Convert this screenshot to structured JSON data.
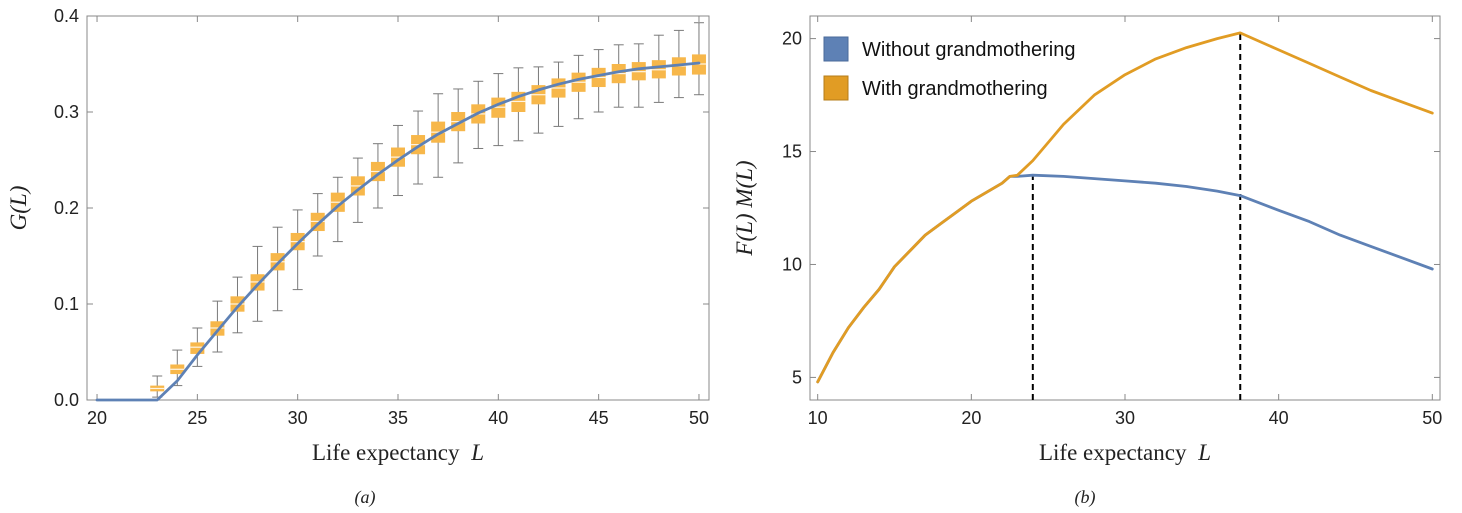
{
  "colors": {
    "blue": "#5e81b5",
    "orange": "#e19c24",
    "orange_light": "#f7b74a",
    "errorbar": "#7a7a7a",
    "vline": "#000000"
  },
  "panel_a": {
    "caption": "(a)",
    "ylabel": "G(L)",
    "xlabel_text": "Life expectancy",
    "xlabel_var": "L"
  },
  "panel_b": {
    "caption": "(b)",
    "ylabel": "F(L) M(L)",
    "xlabel_text": "Life expectancy",
    "xlabel_var": "L",
    "legend": [
      "Without grandmothering",
      "With grandmothering"
    ]
  },
  "chart_data": [
    {
      "type": "line",
      "panel": "a",
      "xlim": [
        19.5,
        50.5
      ],
      "ylim": [
        0,
        0.4
      ],
      "x_ticks": [
        20,
        25,
        30,
        35,
        40,
        45,
        50
      ],
      "y_ticks": [
        0.0,
        0.1,
        0.2,
        0.3,
        0.4
      ],
      "y_tick_labels": [
        "0.0",
        "0.1",
        "0.2",
        "0.3",
        "0.4"
      ],
      "grid": false,
      "series": [
        {
          "style": "line",
          "color": "blue",
          "x": [
            20,
            22,
            23,
            24,
            25,
            26,
            27,
            28,
            29,
            30,
            31,
            32,
            33,
            34,
            35,
            36,
            37,
            38,
            39,
            40,
            41,
            42,
            43,
            44,
            45,
            46,
            47,
            48,
            49,
            50
          ],
          "y": [
            0.0,
            0.0,
            0.0,
            0.02,
            0.047,
            0.072,
            0.097,
            0.12,
            0.142,
            0.163,
            0.183,
            0.202,
            0.219,
            0.235,
            0.25,
            0.264,
            0.277,
            0.288,
            0.299,
            0.308,
            0.316,
            0.323,
            0.329,
            0.334,
            0.338,
            0.342,
            0.345,
            0.347,
            0.349,
            0.351
          ]
        },
        {
          "style": "box",
          "color": "orange_light",
          "x": [
            23,
            24,
            25,
            26,
            27,
            28,
            29,
            30,
            31,
            32,
            33,
            34,
            35,
            36,
            37,
            38,
            39,
            40,
            41,
            42,
            43,
            44,
            45,
            46,
            47,
            48,
            49,
            50
          ],
          "median": [
            0.012,
            0.032,
            0.055,
            0.075,
            0.1,
            0.123,
            0.144,
            0.165,
            0.186,
            0.206,
            0.223,
            0.238,
            0.253,
            0.266,
            0.279,
            0.29,
            0.298,
            0.305,
            0.311,
            0.318,
            0.325,
            0.331,
            0.336,
            0.34,
            0.342,
            0.344,
            0.348,
            0.35
          ],
          "q1": [
            0.009,
            0.027,
            0.048,
            0.067,
            0.092,
            0.114,
            0.135,
            0.156,
            0.176,
            0.196,
            0.213,
            0.228,
            0.243,
            0.256,
            0.268,
            0.28,
            0.288,
            0.294,
            0.3,
            0.308,
            0.315,
            0.321,
            0.326,
            0.33,
            0.333,
            0.335,
            0.338,
            0.339
          ],
          "q3": [
            0.015,
            0.037,
            0.06,
            0.082,
            0.108,
            0.131,
            0.153,
            0.174,
            0.195,
            0.216,
            0.233,
            0.248,
            0.263,
            0.276,
            0.29,
            0.3,
            0.308,
            0.315,
            0.321,
            0.328,
            0.335,
            0.341,
            0.346,
            0.35,
            0.352,
            0.354,
            0.357,
            0.36
          ],
          "low": [
            0.003,
            0.015,
            0.035,
            0.05,
            0.07,
            0.082,
            0.093,
            0.115,
            0.15,
            0.165,
            0.185,
            0.2,
            0.213,
            0.225,
            0.232,
            0.247,
            0.262,
            0.265,
            0.27,
            0.278,
            0.285,
            0.293,
            0.3,
            0.305,
            0.305,
            0.31,
            0.315,
            0.318
          ],
          "high": [
            0.025,
            0.052,
            0.075,
            0.103,
            0.128,
            0.16,
            0.18,
            0.198,
            0.215,
            0.232,
            0.252,
            0.267,
            0.286,
            0.301,
            0.319,
            0.324,
            0.332,
            0.34,
            0.346,
            0.347,
            0.352,
            0.359,
            0.365,
            0.37,
            0.371,
            0.38,
            0.385,
            0.393
          ]
        }
      ]
    },
    {
      "type": "line",
      "panel": "b",
      "xlim": [
        9.5,
        50.5
      ],
      "ylim": [
        4,
        21
      ],
      "x_ticks": [
        10,
        20,
        30,
        40,
        50
      ],
      "y_ticks": [
        5,
        10,
        15,
        20
      ],
      "grid": false,
      "legend_position": "top-left",
      "series": [
        {
          "name": "Without grandmothering",
          "color": "blue",
          "x": [
            10,
            11,
            12,
            13,
            14,
            15,
            16,
            17,
            18,
            19,
            20,
            21,
            22,
            22.5,
            23,
            24,
            26,
            28,
            30,
            32,
            34,
            36,
            37.5,
            40,
            42,
            44,
            46,
            48,
            50
          ],
          "y": [
            4.8,
            6.1,
            7.2,
            8.1,
            8.9,
            9.9,
            10.6,
            11.3,
            11.8,
            12.3,
            12.8,
            13.2,
            13.6,
            13.9,
            13.9,
            13.95,
            13.9,
            13.8,
            13.7,
            13.6,
            13.45,
            13.25,
            13.05,
            12.4,
            11.9,
            11.3,
            10.8,
            10.3,
            9.8
          ]
        },
        {
          "name": "With grandmothering",
          "color": "orange",
          "x": [
            10,
            11,
            12,
            13,
            14,
            15,
            16,
            17,
            18,
            19,
            20,
            21,
            22,
            22.5,
            23,
            24,
            25,
            26,
            28,
            30,
            32,
            34,
            36,
            37.5,
            40,
            42,
            44,
            46,
            48,
            50
          ],
          "y": [
            4.8,
            6.1,
            7.2,
            8.1,
            8.9,
            9.9,
            10.6,
            11.3,
            11.8,
            12.3,
            12.8,
            13.2,
            13.6,
            13.9,
            13.95,
            14.6,
            15.4,
            16.2,
            17.5,
            18.4,
            19.1,
            19.6,
            20.0,
            20.25,
            19.5,
            18.9,
            18.3,
            17.7,
            17.2,
            16.7
          ]
        }
      ],
      "vlines": [
        {
          "x": 24,
          "y_top": 13.95
        },
        {
          "x": 37.5,
          "y_top": 20.25
        }
      ]
    }
  ]
}
